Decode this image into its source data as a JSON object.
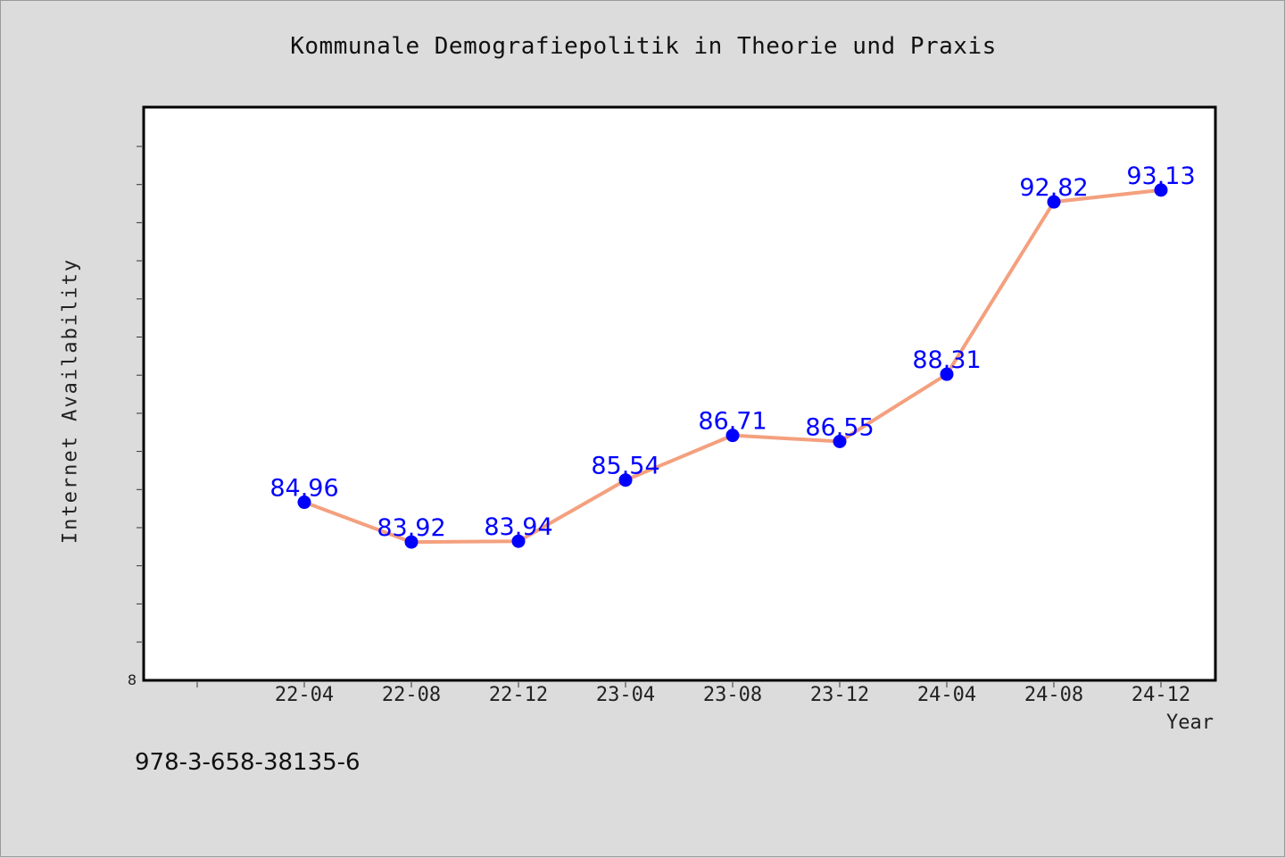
{
  "chart_data": {
    "type": "line",
    "title": "Kommunale Demografiepolitik in Theorie und Praxis",
    "xlabel": "Year",
    "ylabel": "Internet Availability",
    "y_axis_tick_labels": [
      "8"
    ],
    "categories": [
      "22-04",
      "22-08",
      "22-12",
      "23-04",
      "23-08",
      "23-12",
      "24-04",
      "24-08",
      "24-12"
    ],
    "series": [
      {
        "values": [
          84.96,
          83.92,
          83.94,
          85.54,
          86.71,
          86.55,
          88.31,
          92.82,
          93.13
        ],
        "data_labels": [
          "84.96",
          "83.92",
          "83.94",
          "85.54",
          "86.71",
          "86.55",
          "88.31",
          "92.82",
          "93.13"
        ],
        "line_color": "#f4a07e",
        "marker_color": "#0000ff"
      }
    ],
    "ylim": [
      80.3,
      95.3
    ],
    "grid": false,
    "label_color": "#0000ff",
    "background_color": "#dcdcdc",
    "plot_background_color": "#ffffff"
  },
  "footnote": "978-3-658-38135-6"
}
